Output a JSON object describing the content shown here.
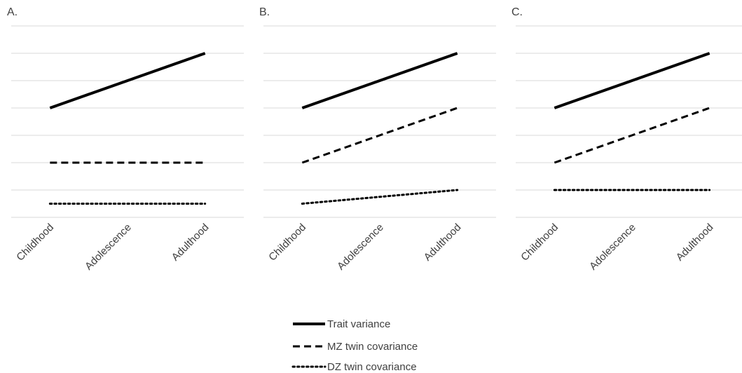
{
  "legend": {
    "trait": "Trait variance",
    "mz": "MZ twin covariance",
    "dz": "DZ twin covariance"
  },
  "colors": {
    "line": "#000000",
    "grid": "#d9d9d9",
    "text": "#404040"
  },
  "chart_data": [
    {
      "type": "line",
      "title": "A.",
      "categories": [
        "Childhood",
        "Adolescence",
        "Adulthood"
      ],
      "grid": true,
      "ylim": [
        0,
        7
      ],
      "series": [
        {
          "name": "Trait variance",
          "style": "solid",
          "values": [
            4,
            5,
            6
          ]
        },
        {
          "name": "MZ twin covariance",
          "style": "dashed",
          "values": [
            2,
            2,
            2
          ]
        },
        {
          "name": "DZ twin covariance",
          "style": "dotted",
          "values": [
            0.5,
            0.5,
            0.5
          ]
        }
      ]
    },
    {
      "type": "line",
      "title": "B.",
      "categories": [
        "Childhood",
        "Adolescence",
        "Adulthood"
      ],
      "grid": true,
      "ylim": [
        0,
        7
      ],
      "series": [
        {
          "name": "Trait variance",
          "style": "solid",
          "values": [
            4,
            5,
            6
          ]
        },
        {
          "name": "MZ twin covariance",
          "style": "dashed",
          "values": [
            2,
            3,
            4
          ]
        },
        {
          "name": "DZ twin covariance",
          "style": "dotted",
          "values": [
            0.5,
            0.75,
            1
          ]
        }
      ]
    },
    {
      "type": "line",
      "title": "C.",
      "categories": [
        "Childhood",
        "Adolescence",
        "Adulthood"
      ],
      "grid": true,
      "ylim": [
        0,
        7
      ],
      "series": [
        {
          "name": "Trait variance",
          "style": "solid",
          "values": [
            4,
            5,
            6
          ]
        },
        {
          "name": "MZ twin covariance",
          "style": "dashed",
          "values": [
            2,
            3,
            4
          ]
        },
        {
          "name": "DZ twin covariance",
          "style": "dotted",
          "values": [
            1,
            1,
            1
          ]
        }
      ]
    }
  ]
}
